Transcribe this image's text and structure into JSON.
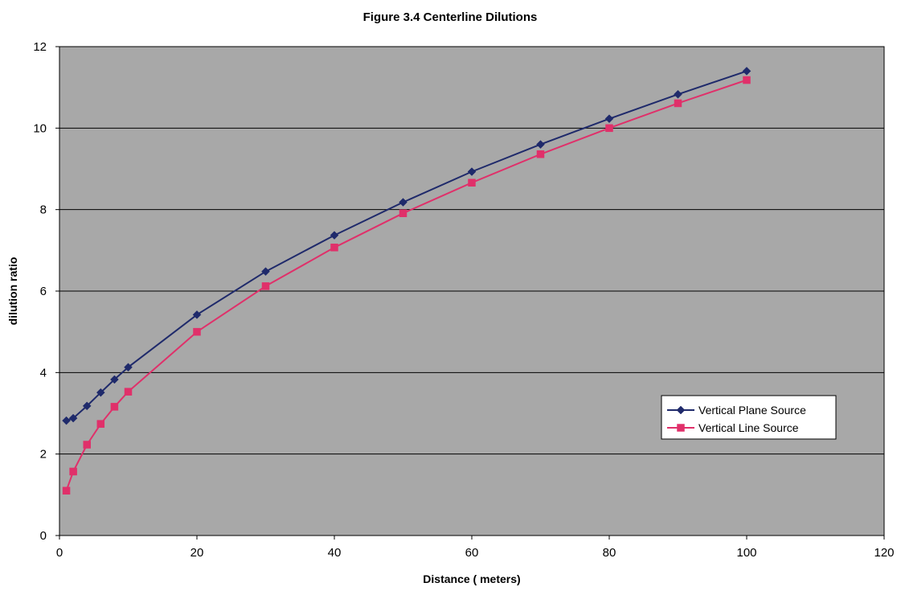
{
  "chart_data": {
    "type": "line",
    "title": "Figure 3.4 Centerline Dilutions",
    "xlabel": "Distance ( meters)",
    "ylabel": "dilution ratio",
    "xlim": [
      0,
      120
    ],
    "ylim": [
      0,
      12
    ],
    "xticks": [
      "0",
      "20",
      "40",
      "60",
      "80",
      "100",
      "120"
    ],
    "yticks": [
      "0",
      "2",
      "4",
      "6",
      "8",
      "10",
      "12"
    ],
    "grid": "horizontal",
    "legend_position": "right",
    "plot_background": "#a8a8a8",
    "series": [
      {
        "name": "Vertical Plane Source",
        "color": "#1f2a6b",
        "marker": "diamond",
        "x": [
          1,
          2,
          4,
          6,
          8,
          10,
          20,
          30,
          40,
          50,
          60,
          70,
          80,
          90,
          100
        ],
        "y": [
          2.82,
          2.88,
          3.18,
          3.51,
          3.83,
          4.13,
          5.42,
          6.48,
          7.37,
          8.18,
          8.93,
          9.6,
          10.23,
          10.83,
          11.4
        ]
      },
      {
        "name": "Vertical Line Source",
        "color": "#e0306a",
        "marker": "square",
        "x": [
          1,
          2,
          4,
          6,
          8,
          10,
          20,
          30,
          40,
          50,
          60,
          70,
          80,
          90,
          100
        ],
        "y": [
          1.1,
          1.57,
          2.23,
          2.74,
          3.16,
          3.53,
          5.0,
          6.12,
          7.07,
          7.91,
          8.66,
          9.36,
          10.0,
          10.61,
          11.18
        ]
      }
    ]
  }
}
